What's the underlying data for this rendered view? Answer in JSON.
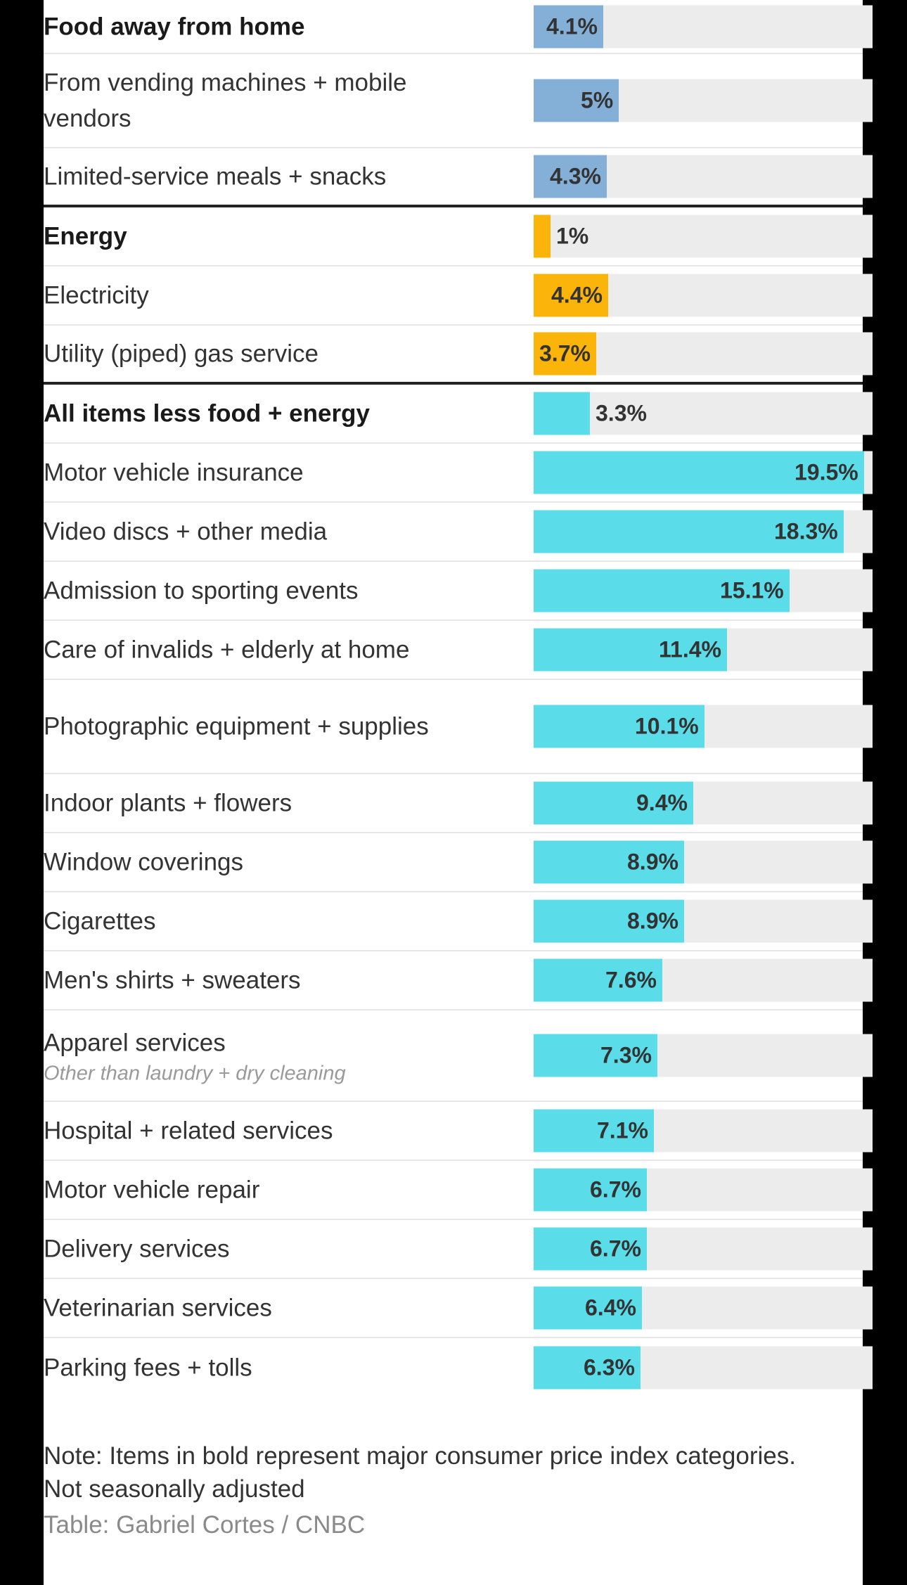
{
  "chart_data": {
    "type": "bar",
    "orientation": "horizontal",
    "xlim": [
      0,
      20
    ],
    "colors": {
      "food": "#84b0d8",
      "energy": "#fbb50a",
      "core": "#5adde8",
      "track": "#ececec"
    },
    "rows": [
      {
        "label": "Food away from home",
        "value": 4.1,
        "value_label": "4.1%",
        "bold": true,
        "group": "food"
      },
      {
        "label": "From vending machines + mobile vendors",
        "value": 5.0,
        "value_label": "5%",
        "bold": false,
        "group": "food"
      },
      {
        "label": "Limited-service meals + snacks",
        "value": 4.3,
        "value_label": "4.3%",
        "bold": false,
        "group": "food",
        "group_end": true
      },
      {
        "label": "Energy",
        "value": 1.0,
        "value_label": "1%",
        "bold": true,
        "group": "energy"
      },
      {
        "label": "Electricity",
        "value": 4.4,
        "value_label": "4.4%",
        "bold": false,
        "group": "energy"
      },
      {
        "label": "Utility (piped) gas service",
        "value": 3.7,
        "value_label": "3.7%",
        "bold": false,
        "group": "energy",
        "group_end": true
      },
      {
        "label": "All items less food + energy",
        "value": 3.3,
        "value_label": "3.3%",
        "bold": true,
        "group": "core"
      },
      {
        "label": "Motor vehicle insurance",
        "value": 19.5,
        "value_label": "19.5%",
        "bold": false,
        "group": "core"
      },
      {
        "label": "Video discs + other media",
        "value": 18.3,
        "value_label": "18.3%",
        "bold": false,
        "group": "core"
      },
      {
        "label": "Admission to sporting events",
        "value": 15.1,
        "value_label": "15.1%",
        "bold": false,
        "group": "core"
      },
      {
        "label": "Care of invalids + elderly at home",
        "value": 11.4,
        "value_label": "11.4%",
        "bold": false,
        "group": "core"
      },
      {
        "label": "Photographic equipment + supplies",
        "value": 10.1,
        "value_label": "10.1%",
        "bold": false,
        "group": "core"
      },
      {
        "label": "Indoor plants + flowers",
        "value": 9.4,
        "value_label": "9.4%",
        "bold": false,
        "group": "core"
      },
      {
        "label": "Window coverings",
        "value": 8.9,
        "value_label": "8.9%",
        "bold": false,
        "group": "core"
      },
      {
        "label": "Cigarettes",
        "value": 8.9,
        "value_label": "8.9%",
        "bold": false,
        "group": "core"
      },
      {
        "label": "Men's shirts + sweaters",
        "value": 7.6,
        "value_label": "7.6%",
        "bold": false,
        "group": "core"
      },
      {
        "label": "Apparel services",
        "sublabel": "Other than laundry + dry cleaning",
        "value": 7.3,
        "value_label": "7.3%",
        "bold": false,
        "group": "core"
      },
      {
        "label": "Hospital + related services",
        "value": 7.1,
        "value_label": "7.1%",
        "bold": false,
        "group": "core"
      },
      {
        "label": "Motor vehicle repair",
        "value": 6.7,
        "value_label": "6.7%",
        "bold": false,
        "group": "core"
      },
      {
        "label": "Delivery services",
        "value": 6.7,
        "value_label": "6.7%",
        "bold": false,
        "group": "core"
      },
      {
        "label": "Veterinarian services",
        "value": 6.4,
        "value_label": "6.4%",
        "bold": false,
        "group": "core"
      },
      {
        "label": "Parking fees + tolls",
        "value": 6.3,
        "value_label": "6.3%",
        "bold": false,
        "group": "core"
      }
    ]
  },
  "notes": {
    "note": "Note: Items in bold represent major consumer price index categories.",
    "adjustment": "Not seasonally adjusted",
    "source": "Table: Gabriel Cortes / CNBC"
  }
}
